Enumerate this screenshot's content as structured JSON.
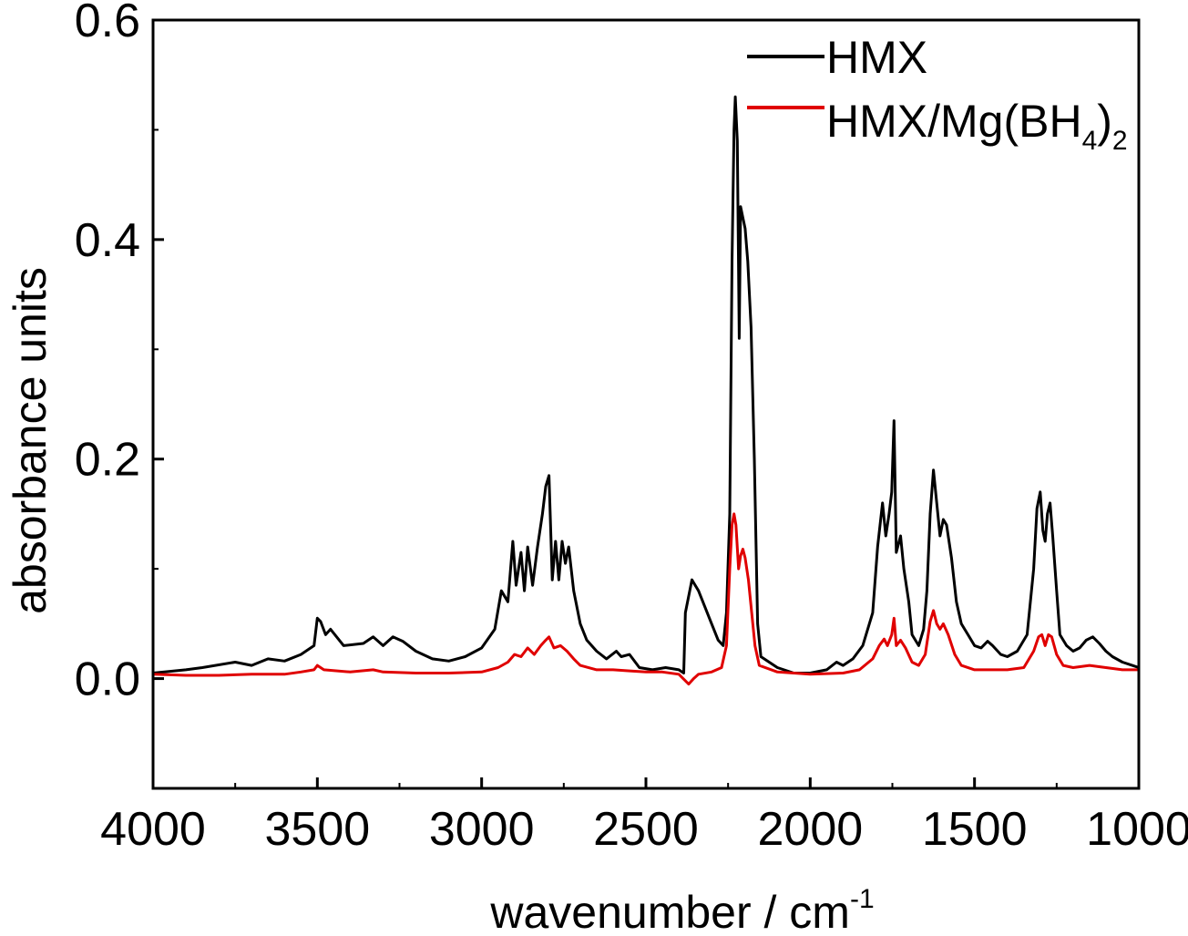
{
  "chart_data": {
    "type": "line",
    "title": "",
    "xlabel": "wavenumber / cm",
    "xlabel_superscript": "-1",
    "ylabel": "absorbance units",
    "xlim": [
      4000,
      1000
    ],
    "ylim": [
      -0.1,
      0.6
    ],
    "x_reversed": true,
    "x_ticks": [
      4000,
      3500,
      3000,
      2500,
      2000,
      1500,
      1000
    ],
    "x_tick_labels": [
      "4000",
      "3500",
      "3000",
      "2500",
      "2000",
      "1500",
      "1000"
    ],
    "y_ticks": [
      0.0,
      0.2,
      0.4,
      0.6
    ],
    "y_tick_labels": [
      "0.0",
      "0.2",
      "0.4",
      "0.6"
    ],
    "grid": false,
    "legend": {
      "placement": "top-right",
      "entries": [
        {
          "label": "HMX",
          "color": "#000000"
        },
        {
          "label_main": "HMX/Mg(BH",
          "label_sub1": "4",
          "label_mid": ")",
          "label_sub2": "2",
          "color": "#e00000"
        }
      ]
    },
    "series": [
      {
        "name": "HMX",
        "color": "#000000",
        "points": [
          [
            4000,
            0.005
          ],
          [
            3900,
            0.008
          ],
          [
            3850,
            0.01
          ],
          [
            3750,
            0.015
          ],
          [
            3700,
            0.012
          ],
          [
            3650,
            0.018
          ],
          [
            3600,
            0.016
          ],
          [
            3550,
            0.022
          ],
          [
            3510,
            0.03
          ],
          [
            3500,
            0.055
          ],
          [
            3490,
            0.052
          ],
          [
            3475,
            0.04
          ],
          [
            3460,
            0.045
          ],
          [
            3420,
            0.03
          ],
          [
            3360,
            0.032
          ],
          [
            3330,
            0.038
          ],
          [
            3300,
            0.03
          ],
          [
            3270,
            0.038
          ],
          [
            3240,
            0.034
          ],
          [
            3200,
            0.025
          ],
          [
            3150,
            0.018
          ],
          [
            3100,
            0.016
          ],
          [
            3050,
            0.02
          ],
          [
            3000,
            0.028
          ],
          [
            2960,
            0.045
          ],
          [
            2940,
            0.08
          ],
          [
            2920,
            0.07
          ],
          [
            2905,
            0.125
          ],
          [
            2895,
            0.085
          ],
          [
            2880,
            0.115
          ],
          [
            2870,
            0.08
          ],
          [
            2860,
            0.12
          ],
          [
            2845,
            0.085
          ],
          [
            2830,
            0.12
          ],
          [
            2815,
            0.15
          ],
          [
            2805,
            0.175
          ],
          [
            2795,
            0.185
          ],
          [
            2785,
            0.09
          ],
          [
            2775,
            0.125
          ],
          [
            2765,
            0.09
          ],
          [
            2755,
            0.125
          ],
          [
            2745,
            0.105
          ],
          [
            2735,
            0.12
          ],
          [
            2720,
            0.08
          ],
          [
            2700,
            0.05
          ],
          [
            2680,
            0.035
          ],
          [
            2650,
            0.025
          ],
          [
            2620,
            0.018
          ],
          [
            2590,
            0.025
          ],
          [
            2575,
            0.02
          ],
          [
            2550,
            0.022
          ],
          [
            2520,
            0.01
          ],
          [
            2480,
            0.008
          ],
          [
            2440,
            0.01
          ],
          [
            2400,
            0.008
          ],
          [
            2385,
            0.005
          ],
          [
            2380,
            0.06
          ],
          [
            2360,
            0.09
          ],
          [
            2340,
            0.08
          ],
          [
            2320,
            0.065
          ],
          [
            2300,
            0.05
          ],
          [
            2280,
            0.035
          ],
          [
            2265,
            0.03
          ],
          [
            2255,
            0.06
          ],
          [
            2245,
            0.15
          ],
          [
            2238,
            0.38
          ],
          [
            2232,
            0.5
          ],
          [
            2228,
            0.53
          ],
          [
            2222,
            0.49
          ],
          [
            2216,
            0.31
          ],
          [
            2212,
            0.43
          ],
          [
            2205,
            0.42
          ],
          [
            2198,
            0.41
          ],
          [
            2190,
            0.38
          ],
          [
            2180,
            0.32
          ],
          [
            2170,
            0.2
          ],
          [
            2160,
            0.05
          ],
          [
            2150,
            0.02
          ],
          [
            2100,
            0.01
          ],
          [
            2050,
            0.005
          ],
          [
            2000,
            0.005
          ],
          [
            1950,
            0.008
          ],
          [
            1920,
            0.015
          ],
          [
            1900,
            0.012
          ],
          [
            1870,
            0.018
          ],
          [
            1840,
            0.03
          ],
          [
            1810,
            0.06
          ],
          [
            1795,
            0.12
          ],
          [
            1780,
            0.16
          ],
          [
            1770,
            0.13
          ],
          [
            1760,
            0.15
          ],
          [
            1752,
            0.17
          ],
          [
            1745,
            0.235
          ],
          [
            1738,
            0.115
          ],
          [
            1725,
            0.13
          ],
          [
            1715,
            0.1
          ],
          [
            1700,
            0.07
          ],
          [
            1690,
            0.04
          ],
          [
            1670,
            0.03
          ],
          [
            1655,
            0.045
          ],
          [
            1645,
            0.08
          ],
          [
            1635,
            0.15
          ],
          [
            1625,
            0.19
          ],
          [
            1615,
            0.16
          ],
          [
            1605,
            0.13
          ],
          [
            1595,
            0.145
          ],
          [
            1585,
            0.14
          ],
          [
            1570,
            0.11
          ],
          [
            1555,
            0.07
          ],
          [
            1540,
            0.05
          ],
          [
            1520,
            0.04
          ],
          [
            1500,
            0.03
          ],
          [
            1480,
            0.028
          ],
          [
            1460,
            0.034
          ],
          [
            1445,
            0.03
          ],
          [
            1420,
            0.022
          ],
          [
            1400,
            0.02
          ],
          [
            1370,
            0.025
          ],
          [
            1340,
            0.04
          ],
          [
            1320,
            0.1
          ],
          [
            1310,
            0.155
          ],
          [
            1300,
            0.17
          ],
          [
            1292,
            0.135
          ],
          [
            1285,
            0.125
          ],
          [
            1278,
            0.15
          ],
          [
            1270,
            0.16
          ],
          [
            1262,
            0.13
          ],
          [
            1250,
            0.08
          ],
          [
            1240,
            0.04
          ],
          [
            1220,
            0.03
          ],
          [
            1200,
            0.025
          ],
          [
            1180,
            0.028
          ],
          [
            1160,
            0.035
          ],
          [
            1140,
            0.038
          ],
          [
            1120,
            0.032
          ],
          [
            1100,
            0.025
          ],
          [
            1080,
            0.02
          ],
          [
            1050,
            0.015
          ],
          [
            1020,
            0.012
          ],
          [
            1000,
            0.01
          ]
        ]
      },
      {
        "name": "HMX/Mg(BH4)2",
        "color": "#e00000",
        "points": [
          [
            4000,
            0.004
          ],
          [
            3900,
            0.003
          ],
          [
            3800,
            0.003
          ],
          [
            3700,
            0.004
          ],
          [
            3600,
            0.004
          ],
          [
            3550,
            0.006
          ],
          [
            3510,
            0.008
          ],
          [
            3500,
            0.012
          ],
          [
            3480,
            0.008
          ],
          [
            3400,
            0.006
          ],
          [
            3330,
            0.008
          ],
          [
            3300,
            0.006
          ],
          [
            3200,
            0.005
          ],
          [
            3100,
            0.005
          ],
          [
            3000,
            0.006
          ],
          [
            2950,
            0.01
          ],
          [
            2920,
            0.015
          ],
          [
            2900,
            0.022
          ],
          [
            2880,
            0.02
          ],
          [
            2860,
            0.028
          ],
          [
            2840,
            0.022
          ],
          [
            2820,
            0.03
          ],
          [
            2805,
            0.035
          ],
          [
            2795,
            0.038
          ],
          [
            2780,
            0.028
          ],
          [
            2760,
            0.03
          ],
          [
            2740,
            0.025
          ],
          [
            2720,
            0.018
          ],
          [
            2700,
            0.012
          ],
          [
            2650,
            0.008
          ],
          [
            2600,
            0.008
          ],
          [
            2550,
            0.007
          ],
          [
            2500,
            0.006
          ],
          [
            2450,
            0.006
          ],
          [
            2400,
            0.004
          ],
          [
            2370,
            -0.005
          ],
          [
            2355,
            0.0
          ],
          [
            2340,
            0.004
          ],
          [
            2300,
            0.006
          ],
          [
            2270,
            0.01
          ],
          [
            2255,
            0.03
          ],
          [
            2245,
            0.1
          ],
          [
            2238,
            0.14
          ],
          [
            2232,
            0.15
          ],
          [
            2226,
            0.14
          ],
          [
            2218,
            0.1
          ],
          [
            2212,
            0.112
          ],
          [
            2205,
            0.118
          ],
          [
            2198,
            0.11
          ],
          [
            2188,
            0.09
          ],
          [
            2178,
            0.06
          ],
          [
            2168,
            0.03
          ],
          [
            2155,
            0.012
          ],
          [
            2100,
            0.006
          ],
          [
            2000,
            0.004
          ],
          [
            1900,
            0.005
          ],
          [
            1850,
            0.008
          ],
          [
            1810,
            0.018
          ],
          [
            1790,
            0.03
          ],
          [
            1775,
            0.036
          ],
          [
            1765,
            0.03
          ],
          [
            1752,
            0.04
          ],
          [
            1745,
            0.055
          ],
          [
            1738,
            0.03
          ],
          [
            1725,
            0.035
          ],
          [
            1710,
            0.028
          ],
          [
            1690,
            0.015
          ],
          [
            1670,
            0.012
          ],
          [
            1650,
            0.022
          ],
          [
            1635,
            0.052
          ],
          [
            1625,
            0.062
          ],
          [
            1615,
            0.05
          ],
          [
            1605,
            0.045
          ],
          [
            1595,
            0.05
          ],
          [
            1580,
            0.04
          ],
          [
            1560,
            0.022
          ],
          [
            1540,
            0.012
          ],
          [
            1500,
            0.008
          ],
          [
            1450,
            0.008
          ],
          [
            1400,
            0.008
          ],
          [
            1350,
            0.01
          ],
          [
            1320,
            0.025
          ],
          [
            1305,
            0.038
          ],
          [
            1295,
            0.04
          ],
          [
            1285,
            0.03
          ],
          [
            1275,
            0.04
          ],
          [
            1265,
            0.038
          ],
          [
            1250,
            0.022
          ],
          [
            1230,
            0.012
          ],
          [
            1200,
            0.01
          ],
          [
            1150,
            0.012
          ],
          [
            1100,
            0.01
          ],
          [
            1050,
            0.008
          ],
          [
            1000,
            0.008
          ]
        ]
      }
    ]
  }
}
